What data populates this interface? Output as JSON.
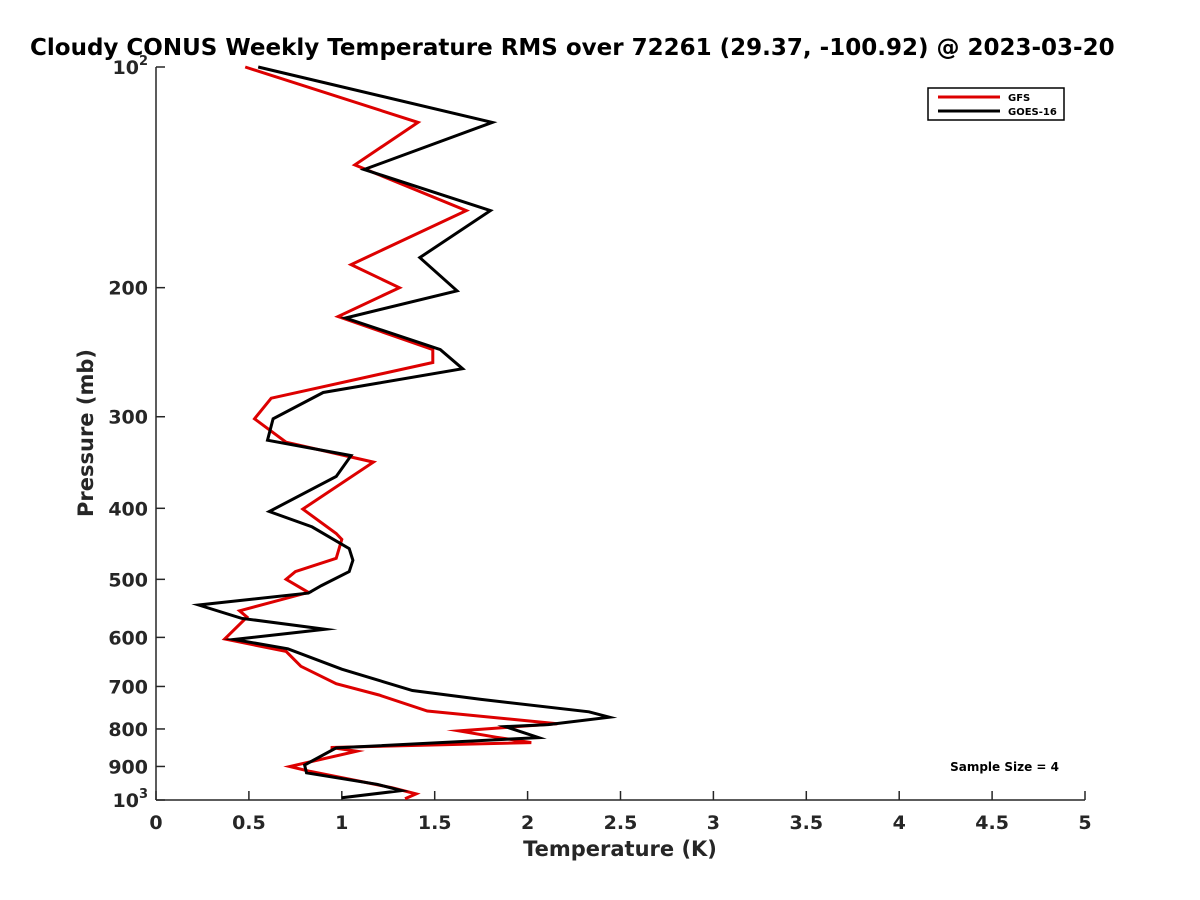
{
  "chart_data": {
    "type": "line",
    "title": "Cloudy CONUS Weekly Temperature RMS over 72261 (29.37, -100.92) @ 2023-03-20",
    "xlabel": "Temperature (K)",
    "ylabel": "Pressure (mb)",
    "xlim": [
      0,
      5
    ],
    "ylim": [
      100,
      1000
    ],
    "y_scale": "log",
    "y_reversed": true,
    "x_ticks": [
      "0",
      "0.5",
      "1",
      "1.5",
      "2",
      "2.5",
      "3",
      "3.5",
      "4",
      "4.5",
      "5"
    ],
    "y_ticks": [
      {
        "value": 100,
        "base": "10",
        "exp": "2"
      },
      {
        "value": 200,
        "label": "200"
      },
      {
        "value": 300,
        "label": "300"
      },
      {
        "value": 400,
        "label": "400"
      },
      {
        "value": 500,
        "label": "500"
      },
      {
        "value": 600,
        "label": "600"
      },
      {
        "value": 700,
        "label": "700"
      },
      {
        "value": 800,
        "label": "800"
      },
      {
        "value": 900,
        "label": "900"
      },
      {
        "value": 1000,
        "base": "10",
        "exp": "3"
      }
    ],
    "grid": false,
    "legend_position": "top-right",
    "annotation": "Sample Size = 4",
    "series": [
      {
        "name": "GFS",
        "color": "#dd0000",
        "points": [
          [
            0.48,
            100
          ],
          [
            1.41,
            119
          ],
          [
            1.07,
            136
          ],
          [
            1.67,
            157
          ],
          [
            1.05,
            186
          ],
          [
            1.31,
            200
          ],
          [
            0.98,
            219
          ],
          [
            1.49,
            243
          ],
          [
            1.49,
            253
          ],
          [
            0.62,
            283
          ],
          [
            0.53,
            302
          ],
          [
            0.7,
            325
          ],
          [
            1.17,
            346
          ],
          [
            0.79,
            401
          ],
          [
            0.97,
            433
          ],
          [
            1.0,
            441
          ],
          [
            0.97,
            468
          ],
          [
            0.75,
            488
          ],
          [
            0.7,
            500
          ],
          [
            0.82,
            521
          ],
          [
            0.45,
            552
          ],
          [
            0.49,
            563
          ],
          [
            0.37,
            603
          ],
          [
            0.7,
            627
          ],
          [
            0.78,
            657
          ],
          [
            0.97,
            694
          ],
          [
            1.2,
            719
          ],
          [
            1.46,
            756
          ],
          [
            2.16,
            787
          ],
          [
            1.63,
            805
          ],
          [
            1.83,
            821
          ],
          [
            2.02,
            835
          ],
          [
            0.94,
            848
          ],
          [
            1.08,
            858
          ],
          [
            0.72,
            900
          ],
          [
            0.83,
            914
          ],
          [
            1.27,
            962
          ],
          [
            1.4,
            981
          ],
          [
            1.34,
            996
          ]
        ]
      },
      {
        "name": "GOES-16",
        "color": "#000000",
        "points": [
          [
            0.55,
            100
          ],
          [
            1.81,
            119
          ],
          [
            1.12,
            138
          ],
          [
            1.8,
            157
          ],
          [
            1.42,
            182
          ],
          [
            1.62,
            202
          ],
          [
            1.02,
            220
          ],
          [
            1.53,
            243
          ],
          [
            1.65,
            258
          ],
          [
            0.9,
            278
          ],
          [
            0.63,
            302
          ],
          [
            0.6,
            323
          ],
          [
            1.05,
            339
          ],
          [
            0.97,
            362
          ],
          [
            0.61,
            404
          ],
          [
            0.84,
            424
          ],
          [
            1.04,
            454
          ],
          [
            1.06,
            471
          ],
          [
            1.04,
            488
          ],
          [
            0.89,
            510
          ],
          [
            0.82,
            522
          ],
          [
            0.23,
            542
          ],
          [
            0.46,
            565
          ],
          [
            0.91,
            585
          ],
          [
            0.42,
            604
          ],
          [
            0.71,
            622
          ],
          [
            1.0,
            663
          ],
          [
            1.38,
            709
          ],
          [
            1.75,
            729
          ],
          [
            2.33,
            758
          ],
          [
            2.44,
            771
          ],
          [
            2.11,
            789
          ],
          [
            1.88,
            794
          ],
          [
            2.06,
            822
          ],
          [
            0.97,
            849
          ],
          [
            0.8,
            896
          ],
          [
            0.81,
            918
          ],
          [
            1.19,
            952
          ],
          [
            1.32,
            971
          ],
          [
            1.0,
            993
          ]
        ]
      }
    ]
  }
}
